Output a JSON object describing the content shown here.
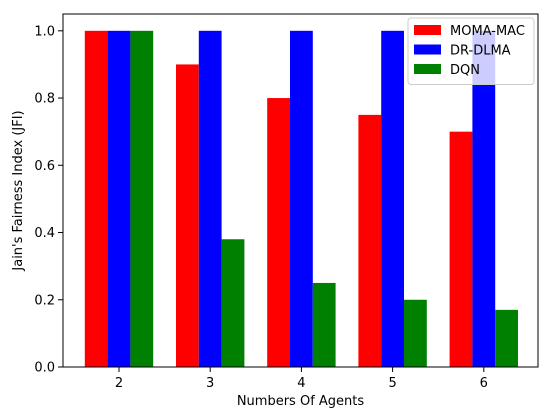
{
  "chart_data": {
    "type": "bar",
    "categories": [
      "2",
      "3",
      "4",
      "5",
      "6"
    ],
    "series": [
      {
        "name": "MOMA-MAC",
        "color": "#ff0000",
        "values": [
          1.0,
          0.9,
          0.8,
          0.75,
          0.7
        ]
      },
      {
        "name": "DR-DLMA",
        "color": "#0000ff",
        "values": [
          1.0,
          1.0,
          1.0,
          1.0,
          1.0
        ]
      },
      {
        "name": "DQN",
        "color": "#008000",
        "values": [
          1.0,
          0.38,
          0.25,
          0.2,
          0.17
        ]
      }
    ],
    "xlabel": "Numbers Of Agents",
    "ylabel": "Jain's Fairness Index (JFI)",
    "ylim": [
      0,
      1.05
    ],
    "yticks": [
      "0.0",
      "0.2",
      "0.4",
      "0.6",
      "0.8",
      "1.0"
    ],
    "grid": false,
    "legend_position": "top-right"
  }
}
